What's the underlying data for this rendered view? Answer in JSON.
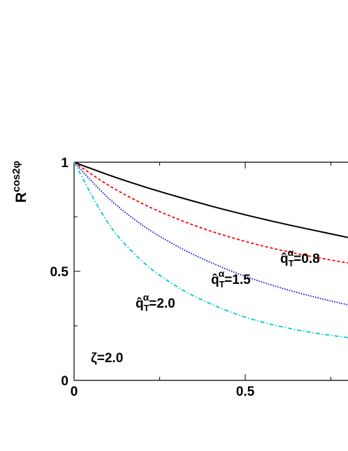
{
  "chart_data": {
    "type": "line",
    "title": "",
    "xlabel": "",
    "ylabel": "R^{cos2φ}",
    "ylabel_parts": {
      "base": "R",
      "sup": "cos2φ"
    },
    "xlim": [
      0,
      0.8
    ],
    "ylim": [
      0,
      1
    ],
    "x_ticks": [
      {
        "value": 0,
        "label": "0"
      },
      {
        "value": 0.5,
        "label": "0.5"
      }
    ],
    "y_ticks": [
      {
        "value": 0,
        "label": "0"
      },
      {
        "value": 0.5,
        "label": "0.5"
      },
      {
        "value": 1,
        "label": "1"
      }
    ],
    "grid": false,
    "legend": "none",
    "annotation": "ζ=2.0",
    "series": [
      {
        "key": "q08",
        "label_value": "=0.8",
        "color": "#000000",
        "style": "solid",
        "x": [
          0,
          0.1,
          0.2,
          0.3,
          0.4,
          0.5,
          0.6,
          0.7,
          0.8
        ],
        "y": [
          1.0,
          0.942,
          0.89,
          0.843,
          0.799,
          0.759,
          0.722,
          0.688,
          0.655
        ]
      },
      {
        "key": "q08-red",
        "label_value": "",
        "color": "#ff0000",
        "style": "dashed",
        "x": [
          0,
          0.1,
          0.2,
          0.3,
          0.4,
          0.5,
          0.6,
          0.7,
          0.8
        ],
        "y": [
          1.0,
          0.895,
          0.81,
          0.741,
          0.684,
          0.637,
          0.598,
          0.566,
          0.538
        ]
      },
      {
        "key": "q15",
        "label_value": "=1.5",
        "color": "#0000cc",
        "style": "dotted",
        "x": [
          0,
          0.1,
          0.2,
          0.3,
          0.4,
          0.5,
          0.6,
          0.7,
          0.8
        ],
        "y": [
          1.0,
          0.836,
          0.711,
          0.616,
          0.54,
          0.477,
          0.426,
          0.383,
          0.346
        ]
      },
      {
        "key": "q20",
        "label_value": "=2.0",
        "color": "#00cccc",
        "style": "dashdot",
        "x": [
          0,
          0.1,
          0.2,
          0.3,
          0.4,
          0.5,
          0.6,
          0.7,
          0.8
        ],
        "y": [
          1.0,
          0.72,
          0.545,
          0.43,
          0.35,
          0.29,
          0.248,
          0.218,
          0.196
        ]
      }
    ],
    "curve_label_symbol": {
      "base": "q̂",
      "sup": "α",
      "sub": "T"
    }
  }
}
